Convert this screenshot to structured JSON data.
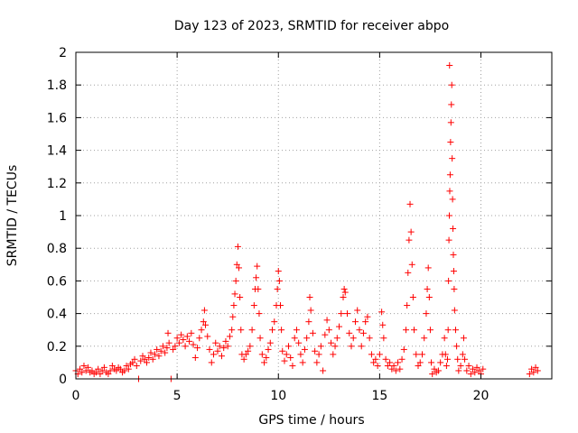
{
  "chart_data": {
    "type": "scatter",
    "title": "Day 123 of 2023, SRMTID for receiver abpo",
    "xlabel": "GPS time / hours",
    "ylabel": "SRMTID / TECUs",
    "xlim": [
      0,
      23.5
    ],
    "ylim": [
      0,
      2
    ],
    "xticks": [
      "0",
      "5",
      "10",
      "15",
      "20"
    ],
    "yticks": [
      "0",
      "0.2",
      "0.4",
      "0.6",
      "0.8",
      "1",
      "1.2",
      "1.4",
      "1.6",
      "1.8",
      "2"
    ],
    "grid": true,
    "marker": "plus",
    "color": "#ff0000",
    "series": [
      {
        "points": [
          [
            0.0,
            0.05
          ],
          [
            0.1,
            0.03
          ],
          [
            0.2,
            0.06
          ],
          [
            0.3,
            0.04
          ],
          [
            0.4,
            0.08
          ],
          [
            0.5,
            0.05
          ],
          [
            0.6,
            0.07
          ],
          [
            0.7,
            0.04
          ],
          [
            0.8,
            0.05
          ],
          [
            0.9,
            0.03
          ],
          [
            1.0,
            0.04
          ],
          [
            1.1,
            0.06
          ],
          [
            1.2,
            0.03
          ],
          [
            1.3,
            0.05
          ],
          [
            1.4,
            0.07
          ],
          [
            1.5,
            0.04
          ],
          [
            1.6,
            0.03
          ],
          [
            1.7,
            0.05
          ],
          [
            1.8,
            0.08
          ],
          [
            1.9,
            0.06
          ],
          [
            2.0,
            0.05
          ],
          [
            2.1,
            0.07
          ],
          [
            2.2,
            0.06
          ],
          [
            2.3,
            0.04
          ],
          [
            2.4,
            0.05
          ],
          [
            2.5,
            0.08
          ],
          [
            2.6,
            0.06
          ],
          [
            2.7,
            0.09
          ],
          [
            2.8,
            0.1
          ],
          [
            2.9,
            0.12
          ],
          [
            3.0,
            0.08
          ],
          [
            3.1,
            0.0
          ],
          [
            3.2,
            0.11
          ],
          [
            3.3,
            0.14
          ],
          [
            3.4,
            0.12
          ],
          [
            3.5,
            0.1
          ],
          [
            3.6,
            0.13
          ],
          [
            3.7,
            0.16
          ],
          [
            3.8,
            0.12
          ],
          [
            3.9,
            0.15
          ],
          [
            4.0,
            0.18
          ],
          [
            4.1,
            0.14
          ],
          [
            4.2,
            0.17
          ],
          [
            4.3,
            0.2
          ],
          [
            4.4,
            0.16
          ],
          [
            4.5,
            0.19
          ],
          [
            4.55,
            0.28
          ],
          [
            4.6,
            0.22
          ],
          [
            4.7,
            0.0
          ],
          [
            4.8,
            0.18
          ],
          [
            4.9,
            0.2
          ],
          [
            5.0,
            0.25
          ],
          [
            5.1,
            0.22
          ],
          [
            5.2,
            0.27
          ],
          [
            5.3,
            0.24
          ],
          [
            5.4,
            0.2
          ],
          [
            5.5,
            0.26
          ],
          [
            5.6,
            0.23
          ],
          [
            5.7,
            0.28
          ],
          [
            5.8,
            0.21
          ],
          [
            5.9,
            0.13
          ],
          [
            6.0,
            0.19
          ],
          [
            6.1,
            0.25
          ],
          [
            6.2,
            0.3
          ],
          [
            6.3,
            0.35
          ],
          [
            6.35,
            0.42
          ],
          [
            6.4,
            0.33
          ],
          [
            6.5,
            0.26
          ],
          [
            6.6,
            0.18
          ],
          [
            6.7,
            0.1
          ],
          [
            6.8,
            0.15
          ],
          [
            6.9,
            0.22
          ],
          [
            7.0,
            0.17
          ],
          [
            7.1,
            0.2
          ],
          [
            7.2,
            0.14
          ],
          [
            7.3,
            0.19
          ],
          [
            7.4,
            0.23
          ],
          [
            7.5,
            0.2
          ],
          [
            7.6,
            0.26
          ],
          [
            7.7,
            0.3
          ],
          [
            7.75,
            0.38
          ],
          [
            7.8,
            0.45
          ],
          [
            7.85,
            0.52
          ],
          [
            7.9,
            0.6
          ],
          [
            7.95,
            0.7
          ],
          [
            8.0,
            0.81
          ],
          [
            8.05,
            0.68
          ],
          [
            8.1,
            0.5
          ],
          [
            8.15,
            0.3
          ],
          [
            8.2,
            0.15
          ],
          [
            8.3,
            0.12
          ],
          [
            8.4,
            0.15
          ],
          [
            8.5,
            0.17
          ],
          [
            8.6,
            0.2
          ],
          [
            8.7,
            0.3
          ],
          [
            8.8,
            0.45
          ],
          [
            8.85,
            0.55
          ],
          [
            8.9,
            0.62
          ],
          [
            8.95,
            0.69
          ],
          [
            9.0,
            0.55
          ],
          [
            9.05,
            0.4
          ],
          [
            9.1,
            0.25
          ],
          [
            9.2,
            0.15
          ],
          [
            9.3,
            0.1
          ],
          [
            9.4,
            0.13
          ],
          [
            9.5,
            0.18
          ],
          [
            9.6,
            0.22
          ],
          [
            9.7,
            0.3
          ],
          [
            9.8,
            0.35
          ],
          [
            9.9,
            0.45
          ],
          [
            9.95,
            0.55
          ],
          [
            10.0,
            0.66
          ],
          [
            10.05,
            0.6
          ],
          [
            10.1,
            0.45
          ],
          [
            10.15,
            0.3
          ],
          [
            10.2,
            0.17
          ],
          [
            10.3,
            0.11
          ],
          [
            10.4,
            0.15
          ],
          [
            10.5,
            0.2
          ],
          [
            10.6,
            0.13
          ],
          [
            10.7,
            0.08
          ],
          [
            10.8,
            0.25
          ],
          [
            10.9,
            0.3
          ],
          [
            11.0,
            0.22
          ],
          [
            11.1,
            0.15
          ],
          [
            11.2,
            0.1
          ],
          [
            11.3,
            0.18
          ],
          [
            11.4,
            0.25
          ],
          [
            11.5,
            0.35
          ],
          [
            11.55,
            0.5
          ],
          [
            11.6,
            0.42
          ],
          [
            11.7,
            0.28
          ],
          [
            11.8,
            0.17
          ],
          [
            11.9,
            0.1
          ],
          [
            12.0,
            0.15
          ],
          [
            12.1,
            0.2
          ],
          [
            12.2,
            0.05
          ],
          [
            12.3,
            0.27
          ],
          [
            12.4,
            0.36
          ],
          [
            12.5,
            0.3
          ],
          [
            12.6,
            0.22
          ],
          [
            12.7,
            0.15
          ],
          [
            12.8,
            0.2
          ],
          [
            12.9,
            0.25
          ],
          [
            13.0,
            0.32
          ],
          [
            13.1,
            0.4
          ],
          [
            13.2,
            0.5
          ],
          [
            13.25,
            0.55
          ],
          [
            13.3,
            0.53
          ],
          [
            13.4,
            0.4
          ],
          [
            13.5,
            0.28
          ],
          [
            13.6,
            0.2
          ],
          [
            13.7,
            0.25
          ],
          [
            13.8,
            0.35
          ],
          [
            13.9,
            0.42
          ],
          [
            14.0,
            0.3
          ],
          [
            14.1,
            0.2
          ],
          [
            14.2,
            0.28
          ],
          [
            14.3,
            0.35
          ],
          [
            14.4,
            0.38
          ],
          [
            14.5,
            0.25
          ],
          [
            14.6,
            0.15
          ],
          [
            14.7,
            0.1
          ],
          [
            14.8,
            0.12
          ],
          [
            14.9,
            0.08
          ],
          [
            15.0,
            0.15
          ],
          [
            15.1,
            0.41
          ],
          [
            15.15,
            0.33
          ],
          [
            15.2,
            0.25
          ],
          [
            15.3,
            0.12
          ],
          [
            15.4,
            0.08
          ],
          [
            15.5,
            0.1
          ],
          [
            15.6,
            0.06
          ],
          [
            15.7,
            0.08
          ],
          [
            15.8,
            0.05
          ],
          [
            15.9,
            0.1
          ],
          [
            16.0,
            0.06
          ],
          [
            16.1,
            0.12
          ],
          [
            16.2,
            0.18
          ],
          [
            16.3,
            0.3
          ],
          [
            16.35,
            0.45
          ],
          [
            16.4,
            0.65
          ],
          [
            16.45,
            0.85
          ],
          [
            16.5,
            1.07
          ],
          [
            16.55,
            0.9
          ],
          [
            16.6,
            0.7
          ],
          [
            16.65,
            0.5
          ],
          [
            16.7,
            0.3
          ],
          [
            16.8,
            0.15
          ],
          [
            16.9,
            0.08
          ],
          [
            17.0,
            0.1
          ],
          [
            17.1,
            0.15
          ],
          [
            17.2,
            0.25
          ],
          [
            17.3,
            0.4
          ],
          [
            17.35,
            0.55
          ],
          [
            17.4,
            0.68
          ],
          [
            17.45,
            0.5
          ],
          [
            17.5,
            0.3
          ],
          [
            17.55,
            0.1
          ],
          [
            17.6,
            0.03
          ],
          [
            17.7,
            0.06
          ],
          [
            17.8,
            0.04
          ],
          [
            17.9,
            0.05
          ],
          [
            18.0,
            0.1
          ],
          [
            18.1,
            0.15
          ],
          [
            18.2,
            0.25
          ],
          [
            18.25,
            0.15
          ],
          [
            18.3,
            0.08
          ],
          [
            18.35,
            0.12
          ],
          [
            18.38,
            0.3
          ],
          [
            18.4,
            0.6
          ],
          [
            18.42,
            0.85
          ],
          [
            18.44,
            1.0
          ],
          [
            18.46,
            1.15
          ],
          [
            18.48,
            1.25
          ],
          [
            18.5,
            1.45
          ],
          [
            18.52,
            1.57
          ],
          [
            18.54,
            1.68
          ],
          [
            18.56,
            1.8
          ],
          [
            18.45,
            1.92
          ],
          [
            18.58,
            1.35
          ],
          [
            18.6,
            1.1
          ],
          [
            18.62,
            0.92
          ],
          [
            18.64,
            0.76
          ],
          [
            18.66,
            0.66
          ],
          [
            18.68,
            0.55
          ],
          [
            18.7,
            0.42
          ],
          [
            18.75,
            0.3
          ],
          [
            18.8,
            0.2
          ],
          [
            18.85,
            0.12
          ],
          [
            18.9,
            0.05
          ],
          [
            19.0,
            0.08
          ],
          [
            19.1,
            0.15
          ],
          [
            19.15,
            0.25
          ],
          [
            19.2,
            0.12
          ],
          [
            19.3,
            0.05
          ],
          [
            19.4,
            0.08
          ],
          [
            19.5,
            0.03
          ],
          [
            19.6,
            0.06
          ],
          [
            19.7,
            0.04
          ],
          [
            19.8,
            0.07
          ],
          [
            19.9,
            0.05
          ],
          [
            20.0,
            0.03
          ],
          [
            20.1,
            0.06
          ],
          [
            22.4,
            0.03
          ],
          [
            22.5,
            0.06
          ],
          [
            22.6,
            0.04
          ],
          [
            22.7,
            0.07
          ],
          [
            22.8,
            0.05
          ]
        ]
      }
    ]
  }
}
